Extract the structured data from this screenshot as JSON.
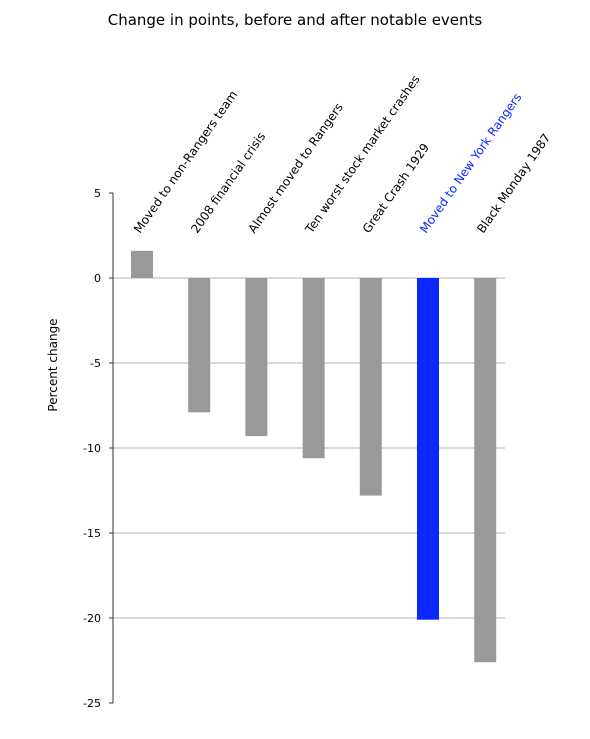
{
  "chart_data": {
    "type": "bar",
    "title": "Change in points, before and after notable events",
    "xlabel": "",
    "ylabel": "Percent change",
    "ylim": [
      -25,
      5
    ],
    "yticks": [
      5,
      0,
      -5,
      -10,
      -15,
      -20,
      -25
    ],
    "categories": [
      "Moved to non-Rangers team",
      "2008 financial crisis",
      "Almost moved to Rangers",
      "Ten worst stock market crashes",
      "Great Crash 1929",
      "Moved to New York Rangers",
      "Black Monday 1987"
    ],
    "values": [
      1.6,
      -7.9,
      -9.3,
      -10.6,
      -12.8,
      -20.1,
      -22.6
    ],
    "highlight_index": 5,
    "colors": {
      "bar": "#999999",
      "highlight": "#0a28ff",
      "gridline": "#b3b3b3",
      "axis": "#333333"
    },
    "grid": true,
    "legend": "none"
  }
}
